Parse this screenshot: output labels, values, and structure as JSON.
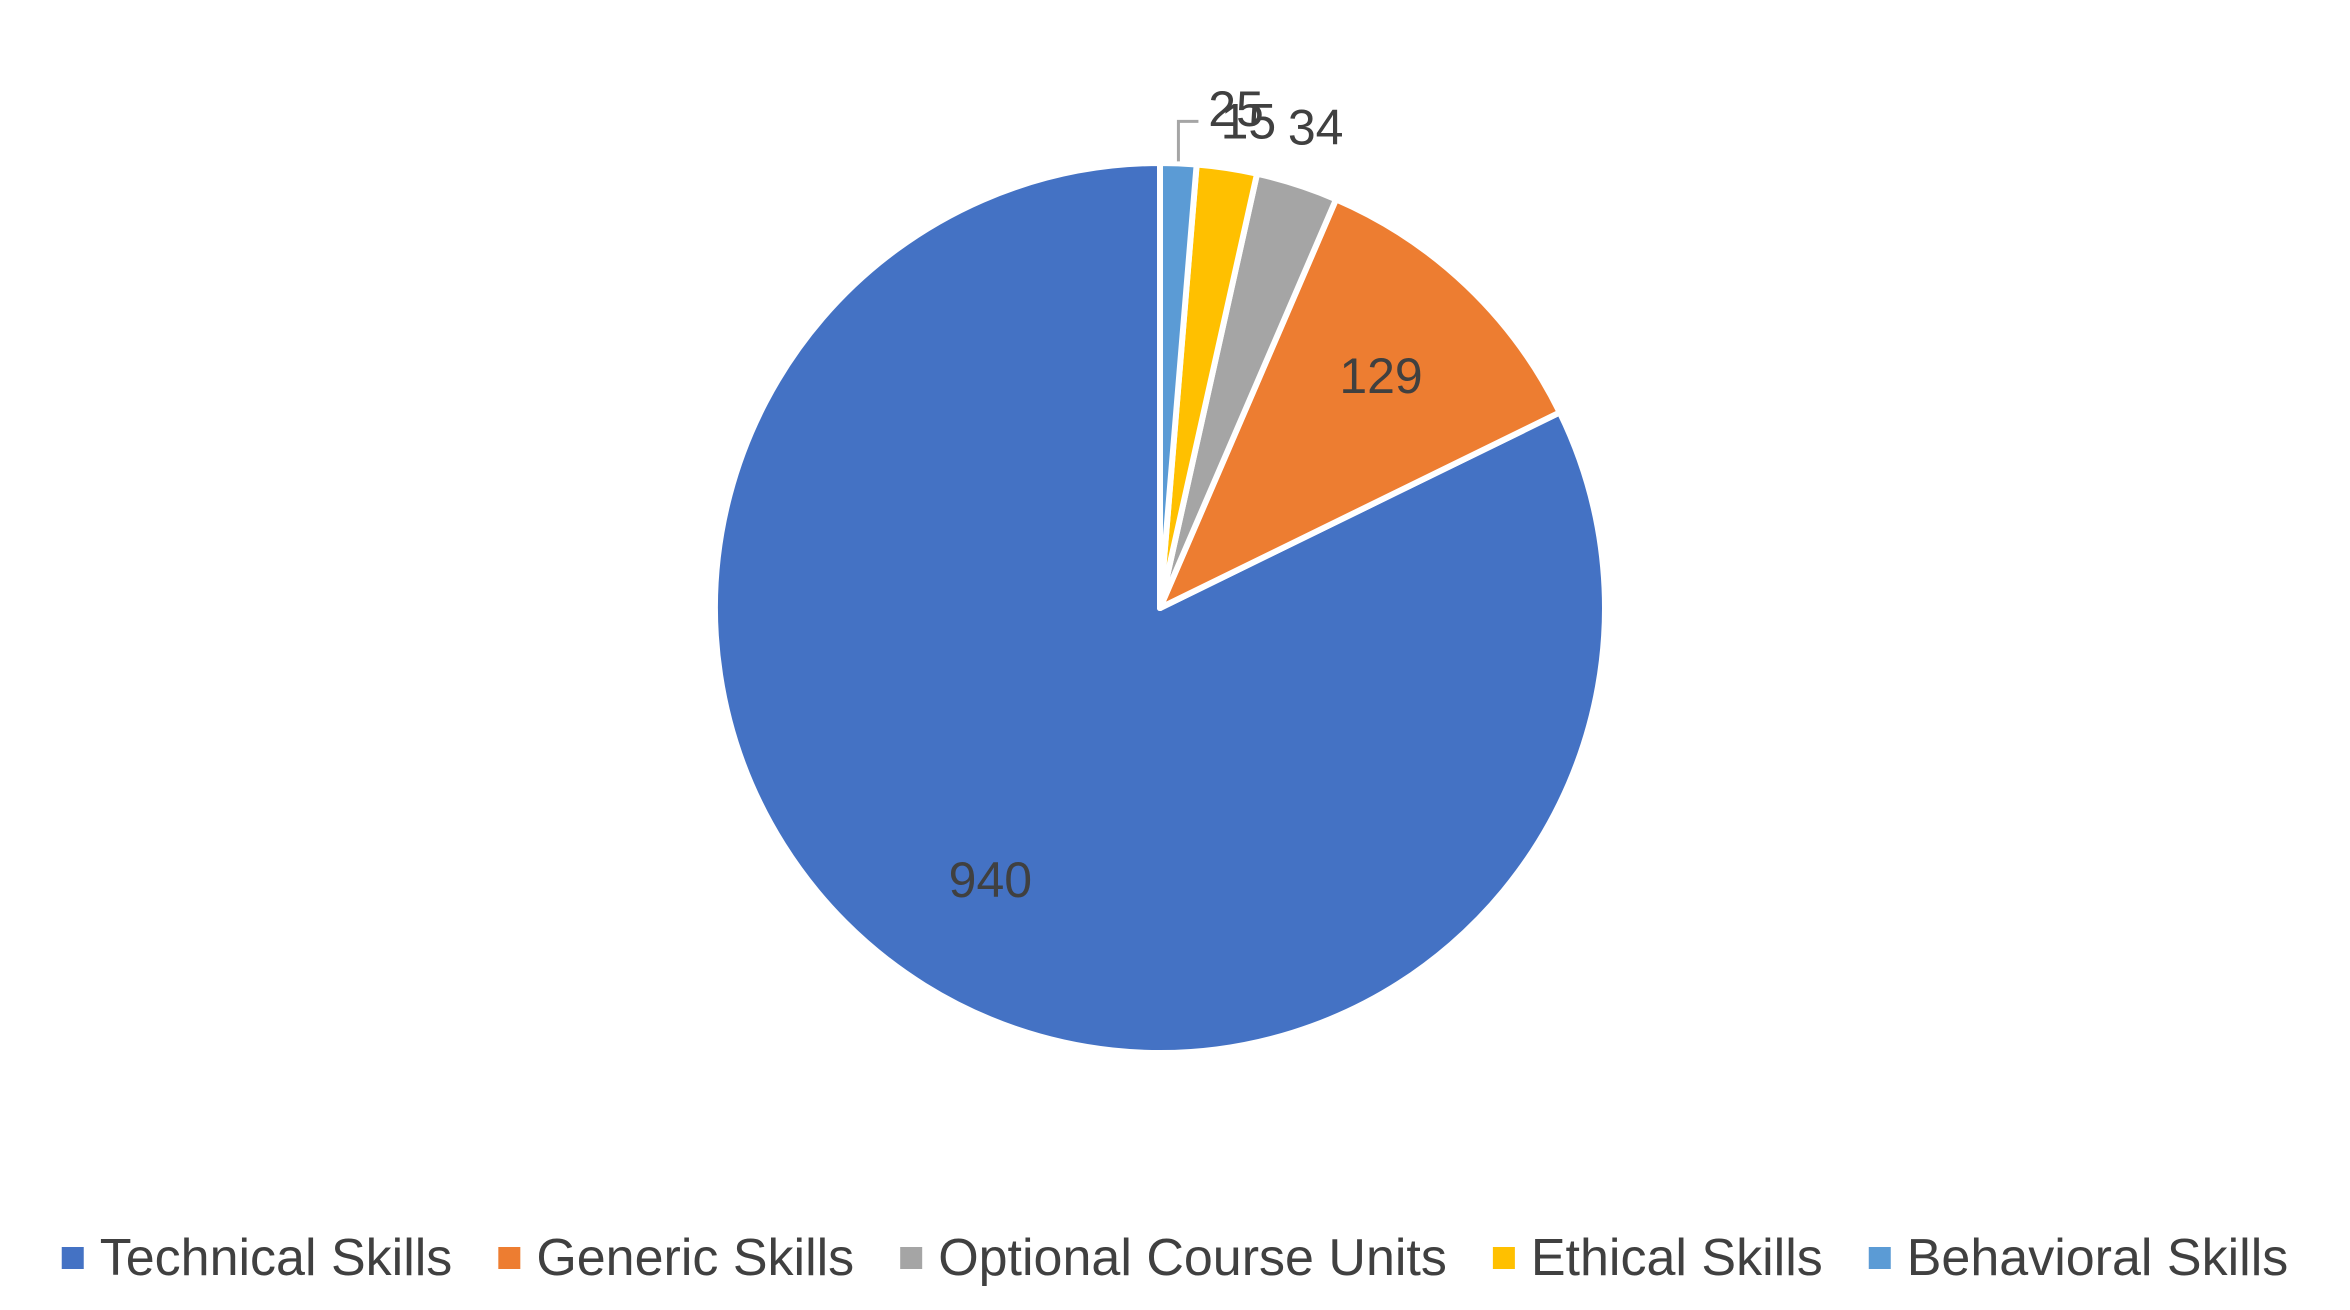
{
  "chart_data": {
    "type": "pie",
    "title": "",
    "categories": [
      "Technical Skills",
      "Generic Skills",
      "Optional Course Units",
      "Ethical Skills",
      "Behavioral Skills"
    ],
    "values": [
      940,
      129,
      34,
      25,
      15
    ],
    "colors": [
      "#4472C4",
      "#ED7D31",
      "#A5A5A5",
      "#FFC000",
      "#5B9BD5"
    ],
    "data_labels": [
      "940",
      "129",
      "34",
      "25",
      "15"
    ],
    "legend_position": "bottom",
    "direction": "counterclockwise",
    "start_angle": "top"
  }
}
